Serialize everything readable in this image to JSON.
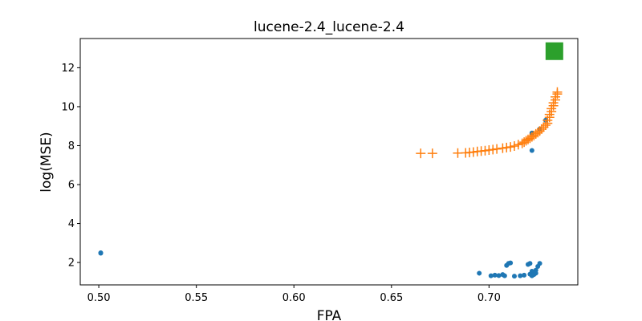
{
  "chart_data": {
    "type": "scatter",
    "title": "lucene-2.4_lucene-2.4",
    "xlabel": "FPA",
    "ylabel": "log(MSE)",
    "xlim": [
      0.4905,
      0.7455
    ],
    "ylim": [
      0.85,
      13.5
    ],
    "xticks": [
      0.5,
      0.55,
      0.6,
      0.65,
      0.7
    ],
    "xtick_labels": [
      "0.50",
      "0.55",
      "0.60",
      "0.65",
      "0.70"
    ],
    "yticks": [
      2,
      4,
      6,
      8,
      10,
      12
    ],
    "ytick_labels": [
      "2",
      "4",
      "6",
      "8",
      "10",
      "12"
    ],
    "grid": false,
    "series": [
      {
        "marker": "circle",
        "color": "#1f77b4",
        "points": [
          [
            0.501,
            2.5
          ],
          [
            0.501,
            2.48
          ],
          [
            0.695,
            1.45
          ],
          [
            0.701,
            1.32
          ],
          [
            0.703,
            1.35
          ],
          [
            0.705,
            1.33
          ],
          [
            0.707,
            1.38
          ],
          [
            0.708,
            1.32
          ],
          [
            0.709,
            1.85
          ],
          [
            0.71,
            1.95
          ],
          [
            0.711,
            1.98
          ],
          [
            0.713,
            1.3
          ],
          [
            0.716,
            1.32
          ],
          [
            0.718,
            1.35
          ],
          [
            0.72,
            1.9
          ],
          [
            0.721,
            1.95
          ],
          [
            0.721,
            1.4
          ],
          [
            0.722,
            1.32
          ],
          [
            0.722,
            1.55
          ],
          [
            0.723,
            1.5
          ],
          [
            0.723,
            1.38
          ],
          [
            0.724,
            1.6
          ],
          [
            0.724,
            1.45
          ],
          [
            0.725,
            1.8
          ],
          [
            0.726,
            1.95
          ],
          [
            0.722,
            7.75
          ],
          [
            0.722,
            8.65
          ],
          [
            0.726,
            8.85
          ],
          [
            0.729,
            9.3
          ]
        ]
      },
      {
        "marker": "plus",
        "color": "#ff7f0e",
        "points": [
          [
            0.665,
            7.6
          ],
          [
            0.671,
            7.6
          ],
          [
            0.684,
            7.62
          ],
          [
            0.688,
            7.63
          ],
          [
            0.69,
            7.65
          ],
          [
            0.692,
            7.67
          ],
          [
            0.694,
            7.7
          ],
          [
            0.696,
            7.72
          ],
          [
            0.698,
            7.74
          ],
          [
            0.7,
            7.77
          ],
          [
            0.702,
            7.8
          ],
          [
            0.704,
            7.83
          ],
          [
            0.707,
            7.87
          ],
          [
            0.709,
            7.9
          ],
          [
            0.711,
            7.93
          ],
          [
            0.713,
            7.98
          ],
          [
            0.715,
            8.05
          ],
          [
            0.717,
            8.12
          ],
          [
            0.718,
            8.18
          ],
          [
            0.719,
            8.25
          ],
          [
            0.72,
            8.32
          ],
          [
            0.721,
            8.38
          ],
          [
            0.722,
            8.45
          ],
          [
            0.723,
            8.52
          ],
          [
            0.724,
            8.6
          ],
          [
            0.725,
            8.67
          ],
          [
            0.726,
            8.75
          ],
          [
            0.727,
            8.85
          ],
          [
            0.728,
            8.95
          ],
          [
            0.729,
            9.05
          ],
          [
            0.73,
            9.15
          ],
          [
            0.73,
            9.3
          ],
          [
            0.731,
            9.45
          ],
          [
            0.731,
            9.6
          ],
          [
            0.732,
            9.75
          ],
          [
            0.732,
            9.9
          ],
          [
            0.733,
            10.05
          ],
          [
            0.733,
            10.2
          ],
          [
            0.734,
            10.35
          ],
          [
            0.734,
            10.5
          ],
          [
            0.735,
            10.65
          ],
          [
            0.735,
            10.75
          ]
        ]
      },
      {
        "marker": "square",
        "color": "#2ca02c",
        "points": [
          [
            0.7335,
            12.85
          ]
        ]
      }
    ]
  }
}
